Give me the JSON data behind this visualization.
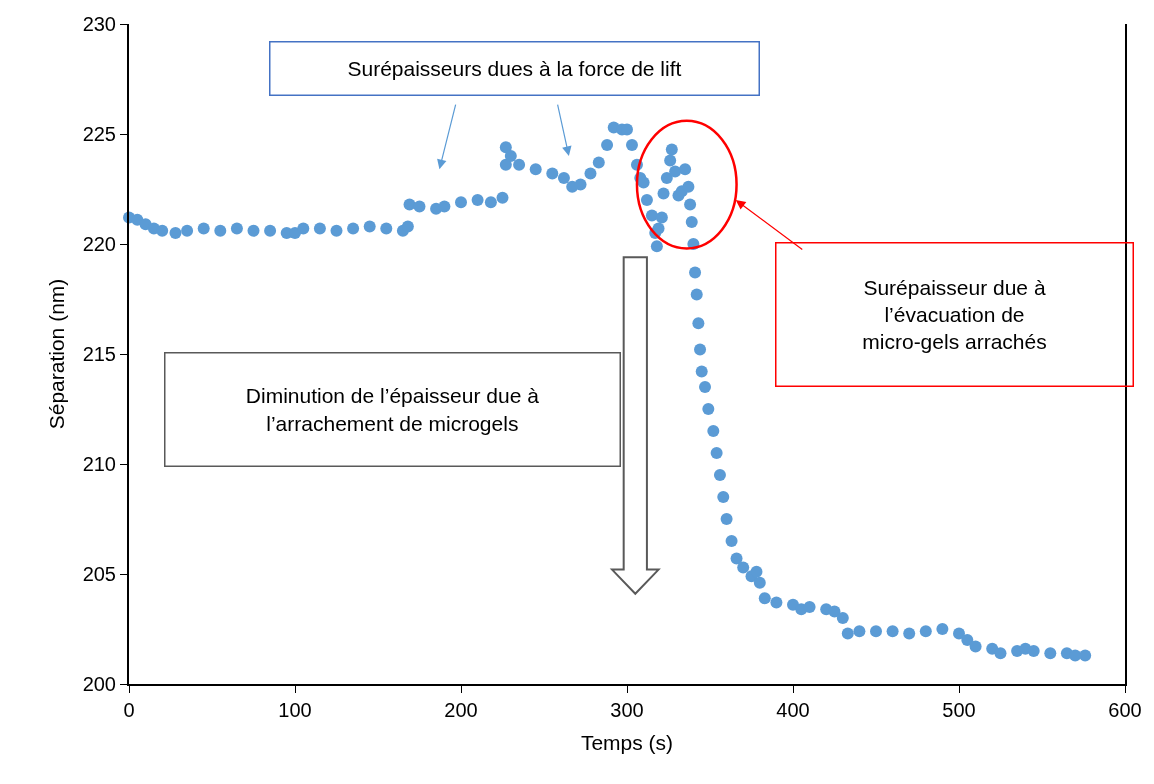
{
  "chart_data": {
    "type": "scatter",
    "xlabel": "Temps (s)",
    "ylabel": "Séparation (nm)",
    "xlim": [
      0,
      600
    ],
    "xticks": [
      0,
      100,
      200,
      300,
      400,
      500,
      600
    ],
    "ylim": [
      200,
      230
    ],
    "yticks": [
      200,
      205,
      210,
      215,
      220,
      225,
      230
    ],
    "marker": "circle",
    "annotations": [
      "Surépaisseurs dues à la force de lift",
      "Diminution de l’épaisseur due à l’arrachement de microgels",
      "Surépaisseur due à l’évacuation de micro-gels arrachés"
    ],
    "series": [
      {
        "color": "#5b9bd5",
        "x": [
          0,
          5,
          10,
          15,
          20,
          28,
          35,
          45,
          55,
          65,
          75,
          85,
          95,
          100,
          105,
          115,
          125,
          135,
          145,
          155,
          165,
          168,
          169,
          175,
          185,
          190,
          200,
          210,
          218,
          225,
          227,
          227,
          230,
          235,
          245,
          255,
          262,
          267,
          272,
          278,
          283,
          288,
          292,
          297,
          300,
          303,
          306,
          308,
          310,
          312,
          315,
          317,
          318,
          319,
          321,
          322,
          324,
          326,
          327,
          329,
          331,
          333,
          335,
          337,
          338,
          339,
          340,
          341,
          342,
          343,
          344,
          345,
          347,
          349,
          352,
          354,
          356,
          358,
          360,
          363,
          366,
          370,
          375,
          378,
          380,
          383,
          390,
          400,
          405,
          410,
          420,
          425,
          430,
          433,
          440,
          450,
          460,
          470,
          480,
          490,
          500,
          505,
          510,
          520,
          525,
          535,
          540,
          545,
          555,
          565,
          570,
          576
        ],
        "values": [
          221.2,
          221.1,
          220.9,
          220.7,
          220.6,
          220.5,
          220.6,
          220.7,
          220.6,
          220.7,
          220.6,
          220.6,
          220.5,
          220.5,
          220.7,
          220.7,
          220.6,
          220.7,
          220.8,
          220.7,
          220.6,
          220.8,
          221.8,
          221.7,
          221.6,
          221.7,
          221.9,
          222.0,
          221.9,
          222.1,
          223.6,
          224.4,
          224.0,
          223.6,
          223.4,
          223.2,
          223.0,
          222.6,
          222.7,
          223.2,
          223.7,
          224.5,
          225.3,
          225.2,
          225.2,
          224.5,
          223.6,
          223.0,
          222.8,
          222.0,
          221.3,
          220.5,
          219.9,
          220.7,
          221.2,
          222.3,
          223.0,
          223.8,
          224.3,
          223.3,
          222.2,
          222.4,
          223.4,
          222.6,
          221.8,
          221.0,
          220.0,
          218.7,
          217.7,
          216.4,
          215.2,
          214.2,
          213.5,
          212.5,
          211.5,
          210.5,
          209.5,
          208.5,
          207.5,
          206.5,
          205.7,
          205.3,
          204.9,
          205.1,
          204.6,
          203.9,
          203.7,
          203.6,
          203.4,
          203.5,
          203.4,
          203.3,
          203.0,
          202.3,
          202.4,
          202.4,
          202.4,
          202.3,
          202.4,
          202.5,
          202.3,
          202.0,
          201.7,
          201.6,
          201.4,
          201.5,
          201.6,
          201.5,
          201.4,
          201.4,
          201.3,
          201.3
        ]
      }
    ]
  }
}
